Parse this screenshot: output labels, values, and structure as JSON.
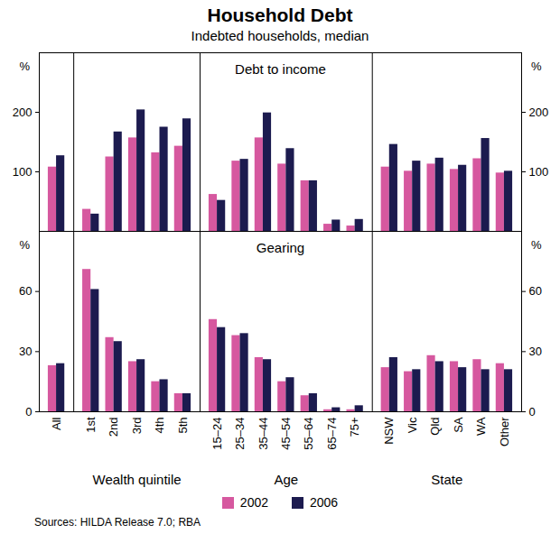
{
  "chart_data": {
    "type": "bar",
    "title": "Household Debt",
    "subtitle": "Indebted households, median",
    "source": "Sources: HILDA Release 7.0; RBA",
    "legend": "bottom",
    "grid": false,
    "series": [
      {
        "name": "2002",
        "color": "#d6589f"
      },
      {
        "name": "2006",
        "color": "#1c1b4f"
      }
    ],
    "groups": [
      {
        "label": null,
        "categories": [
          "All"
        ]
      },
      {
        "label": "Wealth quintile",
        "categories": [
          "1st",
          "2nd",
          "3rd",
          "4th",
          "5th"
        ]
      },
      {
        "label": "Age",
        "categories": [
          "15–24",
          "25–34",
          "35–44",
          "45–54",
          "55–64",
          "65–74",
          "75+"
        ]
      },
      {
        "label": "State",
        "categories": [
          "NSW",
          "Vic",
          "Qld",
          "SA",
          "WA",
          "Other"
        ]
      }
    ],
    "panels": [
      {
        "title": "Debt to income",
        "unit": "%",
        "ylim": [
          0,
          300
        ],
        "yticks": [
          100,
          200
        ],
        "values": [
          [
            108,
            37,
            125,
            157,
            132,
            143,
            62,
            118,
            157,
            113,
            85,
            12,
            9,
            108,
            101,
            113,
            104,
            122,
            98
          ],
          [
            127,
            29,
            167,
            204,
            175,
            189,
            52,
            121,
            199,
            139,
            85,
            19,
            20,
            146,
            118,
            123,
            111,
            156,
            101
          ]
        ]
      },
      {
        "title": "Gearing",
        "unit": "%",
        "ylim": [
          0,
          90
        ],
        "yticks": [
          0,
          30,
          60
        ],
        "values": [
          [
            23,
            71,
            37,
            25,
            15,
            9,
            46,
            38,
            27,
            15,
            8,
            1,
            1,
            22,
            20,
            28,
            25,
            26,
            24
          ],
          [
            24,
            61,
            35,
            26,
            16,
            9,
            42,
            39,
            26,
            17,
            9,
            2,
            3,
            27,
            21,
            25,
            22,
            21,
            21
          ]
        ]
      }
    ]
  }
}
